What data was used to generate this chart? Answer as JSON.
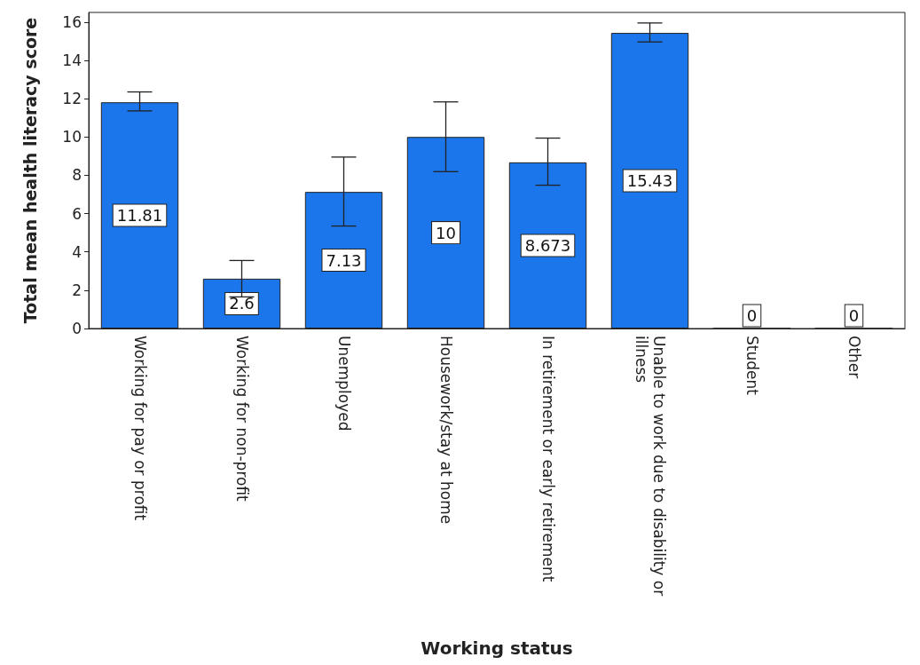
{
  "chart_data": {
    "type": "bar",
    "categories": [
      "Working for pay or profit",
      "Working for non-profit",
      "Unemployed",
      "Housework/stay at home",
      "In retirement or early retirement",
      "Unable to work due to disability or illness",
      "Student",
      "Other"
    ],
    "values": [
      11.81,
      2.6,
      7.13,
      10,
      8.673,
      15.43,
      0,
      0
    ],
    "errors": [
      [
        11.36,
        12.35
      ],
      [
        1.65,
        3.55
      ],
      [
        5.35,
        8.95
      ],
      [
        8.19,
        11.83
      ],
      [
        7.48,
        9.94
      ],
      [
        14.96,
        15.95
      ],
      null,
      null
    ],
    "color": "#1a76ea",
    "xlabel": "Working status",
    "ylabel": "Total mean health literacy score",
    "ylim": [
      0,
      16.5
    ],
    "yticks": [
      0,
      2,
      4,
      6,
      8,
      10,
      12,
      14,
      16
    ],
    "data_labels": true,
    "grid": false
  }
}
